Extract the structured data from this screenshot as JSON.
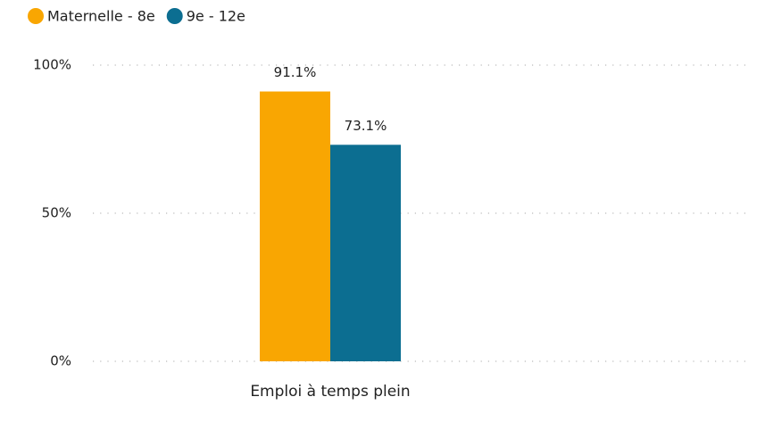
{
  "chart_data": {
    "type": "bar",
    "categories": [
      "Emploi à temps plein"
    ],
    "series": [
      {
        "name": "Maternelle - 8e",
        "color": "#f9a602",
        "values": [
          91.1
        ],
        "value_labels": [
          "91.1%"
        ]
      },
      {
        "name": "9e - 12e",
        "color": "#0c6e91",
        "values": [
          73.1
        ],
        "value_labels": [
          "73.1%"
        ]
      }
    ],
    "ylim": [
      0,
      100
    ],
    "yticks": [
      {
        "value": 0,
        "label": "0%"
      },
      {
        "value": 50,
        "label": "50%"
      },
      {
        "value": 100,
        "label": "100%"
      }
    ],
    "grid": true,
    "legend": "top-left"
  }
}
